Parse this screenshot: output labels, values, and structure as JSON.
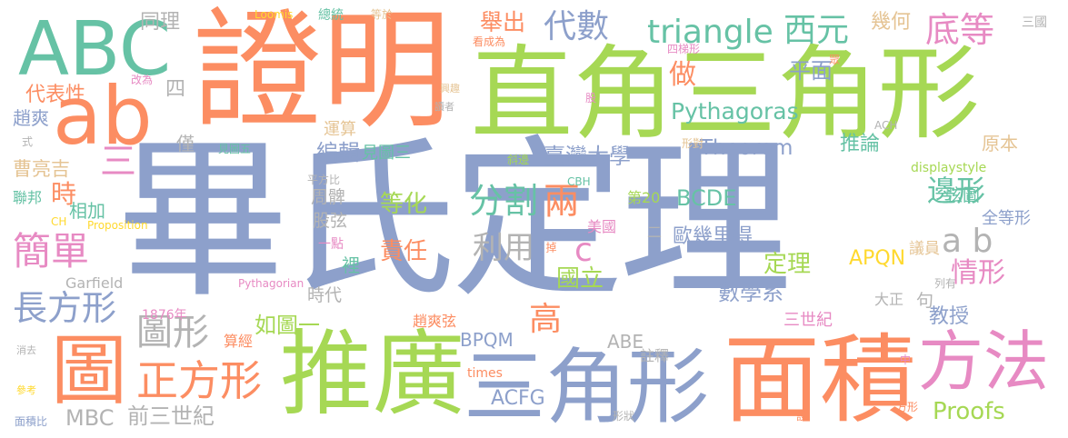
{
  "colors": {
    "blue": "#8da0cb",
    "orange": "#fc8d62",
    "green": "#a6d854",
    "teal": "#66c2a5",
    "pink": "#e78ac3",
    "yellow": "#ffd92f",
    "tan": "#e5c494",
    "gray": "#b3b3b3"
  },
  "words": [
    "畢氏定理",
    "證明",
    "直角三角形",
    "推廣",
    "三角形",
    "面積",
    "ABC",
    "ab",
    "圖",
    "方法",
    "正方形",
    "長方形",
    "簡單",
    "triangle",
    "Pythagoras",
    "代數",
    "西元",
    "底等",
    "舉出",
    "幾何",
    "做",
    "平面",
    "Theorem",
    "分割",
    "兩",
    "利用",
    "臺灣大學",
    "編輯",
    "邊形",
    "推論",
    "情形",
    "a b",
    "c",
    "高",
    "時",
    "三",
    "圖形",
    "數學系",
    "定理",
    "國立",
    "責任",
    "等化",
    "歐幾里得",
    "教授",
    "Proofs",
    "BCDE",
    "APQN",
    "BPQM",
    "ABE",
    "ACFG",
    "MBC",
    "前三世紀",
    "如圖一",
    "時代",
    "代表性",
    "曹亮吉",
    "趙爽",
    "同理",
    "四",
    "僅",
    "周髀",
    "股弦",
    "相加",
    "裡",
    "註釋",
    "原本",
    "全等形",
    "弦圖",
    "議員",
    "句",
    "大正",
    "三世紀",
    "美國",
    "Garfield",
    "1876年",
    "Pythagorian",
    "Proposition",
    "CH",
    "CBH",
    "ACH",
    "displaystyle",
    "times",
    "趙爽弦",
    "算經",
    "運算",
    "見圖三",
    "見圖五",
    "平方比",
    "第20",
    "一點",
    "改為",
    "興趣",
    "讀者",
    "看成為",
    "四梯形",
    "形對",
    "斜邊",
    "掉",
    "列有",
    "形狀",
    "方形",
    "設",
    "中",
    "消去",
    "參考",
    "面積比",
    "Loomis",
    "總統",
    "等於",
    "三國",
    "眾",
    "式",
    "聯邦",
    "股",
    "二"
  ]
}
